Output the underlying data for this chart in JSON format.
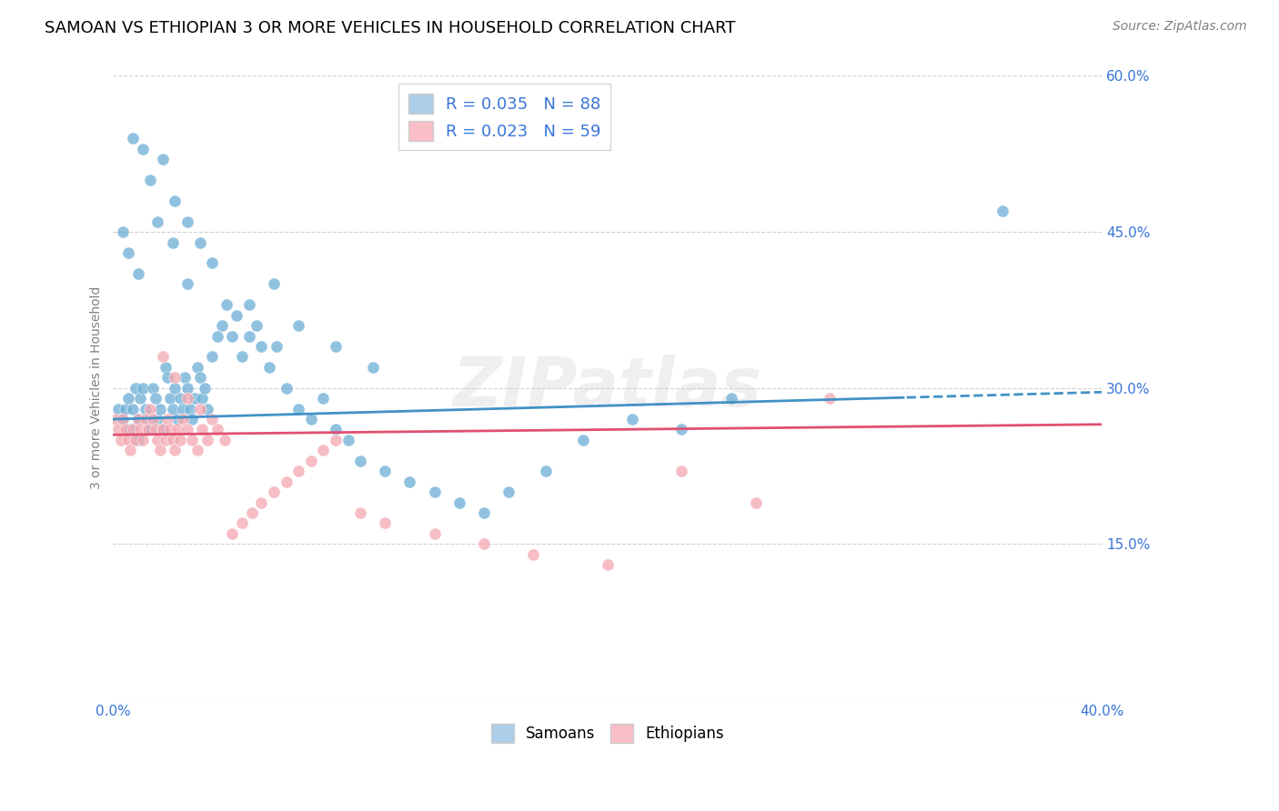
{
  "title": "SAMOAN VS ETHIOPIAN 3 OR MORE VEHICLES IN HOUSEHOLD CORRELATION CHART",
  "source": "Source: ZipAtlas.com",
  "ylabel_label": "3 or more Vehicles in Household",
  "x_min": 0.0,
  "x_max": 0.4,
  "y_min": 0.0,
  "y_max": 0.6,
  "x_ticks": [
    0.0,
    0.05,
    0.1,
    0.15,
    0.2,
    0.25,
    0.3,
    0.35,
    0.4
  ],
  "y_ticks": [
    0.0,
    0.15,
    0.3,
    0.45,
    0.6
  ],
  "watermark": "ZIPatlas",
  "samoan_R": 0.035,
  "samoan_N": 88,
  "ethiopian_R": 0.023,
  "ethiopian_N": 59,
  "samoan_color": "#6baed6",
  "ethiopian_color": "#f4a7b0",
  "samoan_line_color": "#4292c6",
  "ethiopian_line_color": "#e05070",
  "legend_samoan_face": "#aecde8",
  "legend_ethiopian_face": "#f9bec7",
  "blue_text_color": "#3875d7",
  "grid_color": "#cccccc",
  "background_color": "#ffffff",
  "samoan_x": [
    0.002,
    0.003,
    0.004,
    0.005,
    0.006,
    0.007,
    0.008,
    0.009,
    0.01,
    0.01,
    0.011,
    0.012,
    0.013,
    0.014,
    0.015,
    0.016,
    0.017,
    0.018,
    0.019,
    0.02,
    0.021,
    0.022,
    0.023,
    0.024,
    0.025,
    0.026,
    0.027,
    0.028,
    0.029,
    0.03,
    0.031,
    0.032,
    0.033,
    0.034,
    0.035,
    0.036,
    0.037,
    0.038,
    0.04,
    0.042,
    0.044,
    0.046,
    0.048,
    0.05,
    0.052,
    0.055,
    0.058,
    0.06,
    0.063,
    0.066,
    0.07,
    0.075,
    0.08,
    0.085,
    0.09,
    0.095,
    0.1,
    0.11,
    0.12,
    0.13,
    0.14,
    0.15,
    0.16,
    0.175,
    0.19,
    0.21,
    0.23,
    0.25,
    0.015,
    0.02,
    0.025,
    0.03,
    0.035,
    0.04,
    0.008,
    0.012,
    0.018,
    0.024,
    0.03,
    0.004,
    0.006,
    0.01,
    0.055,
    0.065,
    0.075,
    0.09,
    0.105,
    0.36
  ],
  "samoan_y": [
    0.28,
    0.27,
    0.27,
    0.28,
    0.29,
    0.26,
    0.28,
    0.3,
    0.27,
    0.25,
    0.29,
    0.3,
    0.28,
    0.27,
    0.26,
    0.3,
    0.29,
    0.27,
    0.28,
    0.26,
    0.32,
    0.31,
    0.29,
    0.28,
    0.3,
    0.27,
    0.29,
    0.28,
    0.31,
    0.3,
    0.28,
    0.27,
    0.29,
    0.32,
    0.31,
    0.29,
    0.3,
    0.28,
    0.33,
    0.35,
    0.36,
    0.38,
    0.35,
    0.37,
    0.33,
    0.35,
    0.36,
    0.34,
    0.32,
    0.34,
    0.3,
    0.28,
    0.27,
    0.29,
    0.26,
    0.25,
    0.23,
    0.22,
    0.21,
    0.2,
    0.19,
    0.18,
    0.2,
    0.22,
    0.25,
    0.27,
    0.26,
    0.29,
    0.5,
    0.52,
    0.48,
    0.46,
    0.44,
    0.42,
    0.54,
    0.53,
    0.46,
    0.44,
    0.4,
    0.45,
    0.43,
    0.41,
    0.38,
    0.4,
    0.36,
    0.34,
    0.32,
    0.47
  ],
  "ethiopian_x": [
    0.001,
    0.002,
    0.003,
    0.004,
    0.005,
    0.006,
    0.007,
    0.008,
    0.009,
    0.01,
    0.011,
    0.012,
    0.013,
    0.014,
    0.015,
    0.016,
    0.017,
    0.018,
    0.019,
    0.02,
    0.021,
    0.022,
    0.023,
    0.024,
    0.025,
    0.026,
    0.027,
    0.028,
    0.03,
    0.032,
    0.034,
    0.036,
    0.038,
    0.04,
    0.042,
    0.045,
    0.048,
    0.052,
    0.056,
    0.06,
    0.065,
    0.07,
    0.075,
    0.08,
    0.085,
    0.09,
    0.1,
    0.11,
    0.13,
    0.15,
    0.17,
    0.2,
    0.23,
    0.26,
    0.29,
    0.02,
    0.025,
    0.03,
    0.035
  ],
  "ethiopian_y": [
    0.27,
    0.26,
    0.25,
    0.27,
    0.26,
    0.25,
    0.24,
    0.26,
    0.25,
    0.27,
    0.26,
    0.25,
    0.27,
    0.26,
    0.28,
    0.27,
    0.26,
    0.25,
    0.24,
    0.26,
    0.25,
    0.27,
    0.26,
    0.25,
    0.24,
    0.26,
    0.25,
    0.27,
    0.26,
    0.25,
    0.24,
    0.26,
    0.25,
    0.27,
    0.26,
    0.25,
    0.16,
    0.17,
    0.18,
    0.19,
    0.2,
    0.21,
    0.22,
    0.23,
    0.24,
    0.25,
    0.18,
    0.17,
    0.16,
    0.15,
    0.14,
    0.13,
    0.22,
    0.19,
    0.29,
    0.33,
    0.31,
    0.29,
    0.28
  ]
}
